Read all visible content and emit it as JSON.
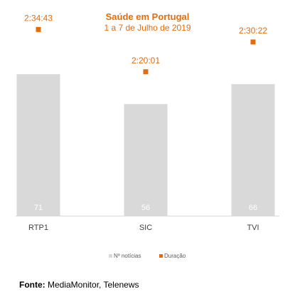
{
  "chart_data": {
    "type": "bar",
    "title": "Saúde em Portugal",
    "subtitle": "1 a 7 de Julho de 2019",
    "categories": [
      "RTP1",
      "SIC",
      "TVI"
    ],
    "series": [
      {
        "name": "Nº notícias",
        "values": [
          71,
          56,
          66
        ],
        "color": "#d9d9d9",
        "marker": "bar"
      },
      {
        "name": "Duração",
        "values": [
          "2:34:43",
          "2:20:01",
          "2:30:22"
        ],
        "color": "#e46c0a",
        "marker": "square"
      }
    ],
    "ylim": [
      0,
      75
    ],
    "y2lim": [
      "1:30:00",
      "2:40:00"
    ],
    "grid": false,
    "legend_position": "bottom"
  },
  "footer": {
    "label": "Fonte:",
    "text": " MediaMonitor, Telenews"
  }
}
